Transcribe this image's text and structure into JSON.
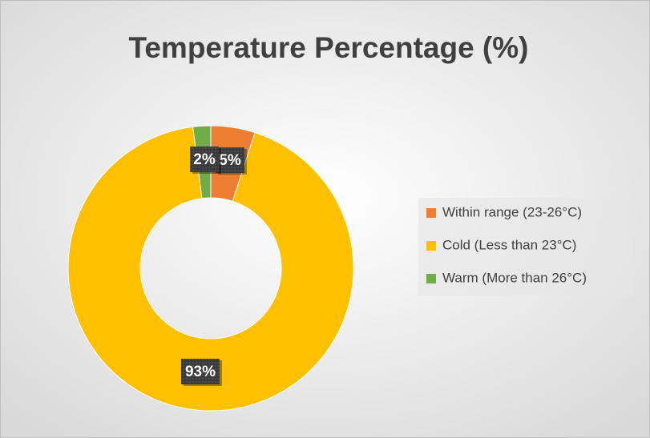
{
  "chart_data": {
    "type": "donut",
    "title": "Temperature Percentage (%)",
    "categories": [
      "Within range (23-26°C)",
      "Cold (Less than 23°C)",
      "Warm (More than 26°C)"
    ],
    "values": [
      5,
      93,
      2
    ],
    "value_labels": [
      "5%",
      "93%",
      "2%"
    ],
    "colors": [
      "#ed7d31",
      "#ffc000",
      "#70ad47"
    ],
    "legend": "right"
  }
}
